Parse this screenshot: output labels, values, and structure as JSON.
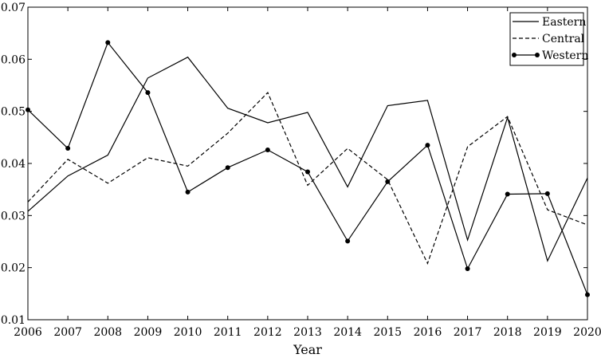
{
  "chart_data": {
    "type": "line",
    "xlabel": "Year",
    "ylabel": "",
    "x": [
      2006,
      2007,
      2008,
      2009,
      2010,
      2011,
      2012,
      2013,
      2014,
      2015,
      2016,
      2017,
      2018,
      2019,
      2020
    ],
    "xticks": [
      "2006",
      "2007",
      "2008",
      "2009",
      "2010",
      "2011",
      "2012",
      "2013",
      "2014",
      "2015",
      "2016",
      "2017",
      "2018",
      "2019",
      "2020"
    ],
    "ylim": [
      0.01,
      0.07
    ],
    "yticks": [
      "0.01",
      "0.02",
      "0.03",
      "0.04",
      "0.05",
      "0.06",
      "0.07"
    ],
    "grid": false,
    "legend_position": "top-right",
    "series": [
      {
        "name": "Eastern",
        "style": "solid",
        "marker": "none",
        "color": "#000000",
        "values": [
          0.0308,
          0.0376,
          0.0416,
          0.0564,
          0.0604,
          0.0506,
          0.0478,
          0.0498,
          0.0355,
          0.0511,
          0.0521,
          0.0253,
          0.0488,
          0.0213,
          0.0372
        ]
      },
      {
        "name": "Central",
        "style": "dashed",
        "marker": "none",
        "color": "#000000",
        "values": [
          0.0326,
          0.0408,
          0.0362,
          0.0411,
          0.0395,
          0.0458,
          0.0536,
          0.0358,
          0.0429,
          0.0369,
          0.0208,
          0.0432,
          0.049,
          0.0311,
          0.0282
        ]
      },
      {
        "name": "Western",
        "style": "solid",
        "marker": "circle",
        "color": "#000000",
        "values": [
          0.0503,
          0.0429,
          0.0632,
          0.0536,
          0.0345,
          0.0392,
          0.0426,
          0.0384,
          0.0251,
          0.0365,
          0.0435,
          0.0198,
          0.0341,
          0.0342,
          0.0148
        ]
      }
    ]
  }
}
